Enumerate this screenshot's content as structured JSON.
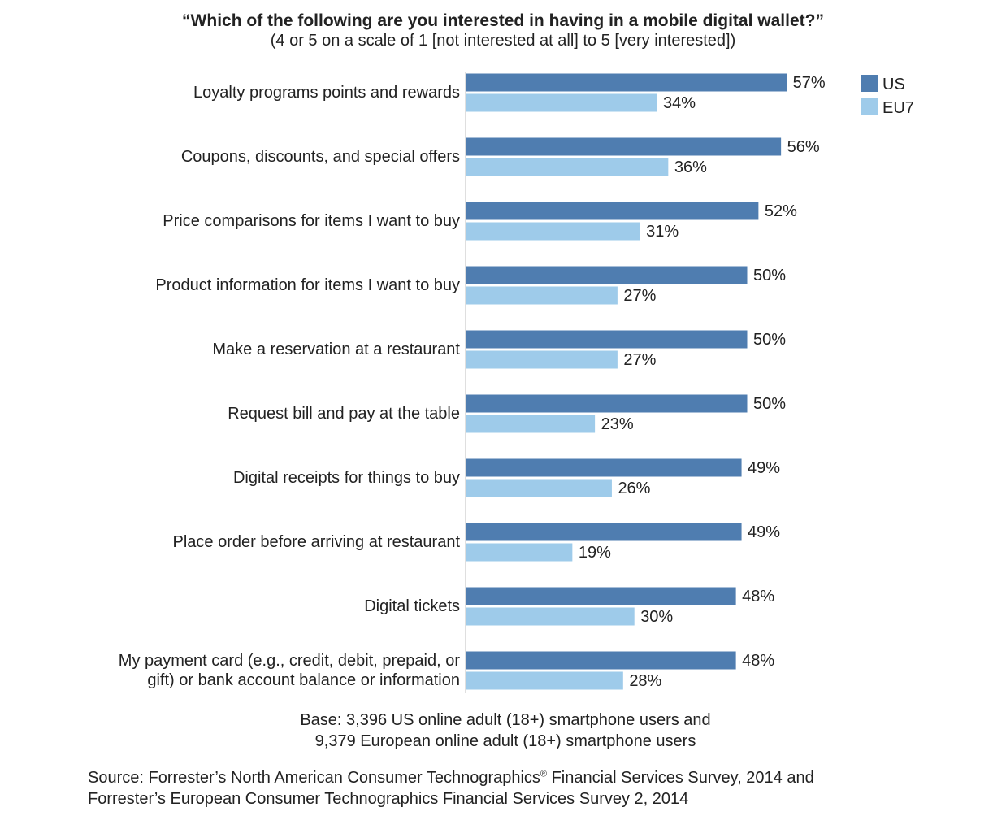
{
  "chart_data": {
    "type": "bar",
    "orientation": "horizontal",
    "title": "“Which of the following are you interested in having in a mobile digital wallet?”",
    "subtitle": "(4 or 5 on a scale of 1 [not interested at all] to 5 [very interested])",
    "categories": [
      [
        "Loyalty programs points and rewards"
      ],
      [
        "Coupons, discounts, and special offers"
      ],
      [
        "Price comparisons for items I want to buy"
      ],
      [
        "Product information for items I want to buy"
      ],
      [
        "Make a reservation at a restaurant"
      ],
      [
        "Request bill and pay at the table"
      ],
      [
        "Digital receipts for things to buy"
      ],
      [
        "Place order before arriving at restaurant"
      ],
      [
        "Digital tickets"
      ],
      [
        "My payment card (e.g., credit, debit, prepaid, or",
        "gift) or bank account balance or information"
      ]
    ],
    "series": [
      {
        "name": "US",
        "color": "#4f7db0",
        "values": [
          57,
          56,
          52,
          50,
          50,
          50,
          49,
          49,
          48,
          48
        ]
      },
      {
        "name": "EU7",
        "color": "#9ecbea",
        "values": [
          34,
          36,
          31,
          27,
          27,
          23,
          26,
          19,
          30,
          28
        ]
      }
    ],
    "value_suffix": "%",
    "legend_position": "top-right",
    "grid": false
  },
  "notes": {
    "base_line1": "Base: 3,396 US online adult (18+) smartphone users and",
    "base_line2": "9,379 European online adult (18+) smartphone users",
    "source_line1_a": "Source: Forrester’s North American Consumer Technographics",
    "source_line1_sup": "®",
    "source_line1_b": " Financial Services Survey, 2014 and",
    "source_line2": "Forrester’s European Consumer Technographics Financial Services Survey 2, 2014"
  }
}
